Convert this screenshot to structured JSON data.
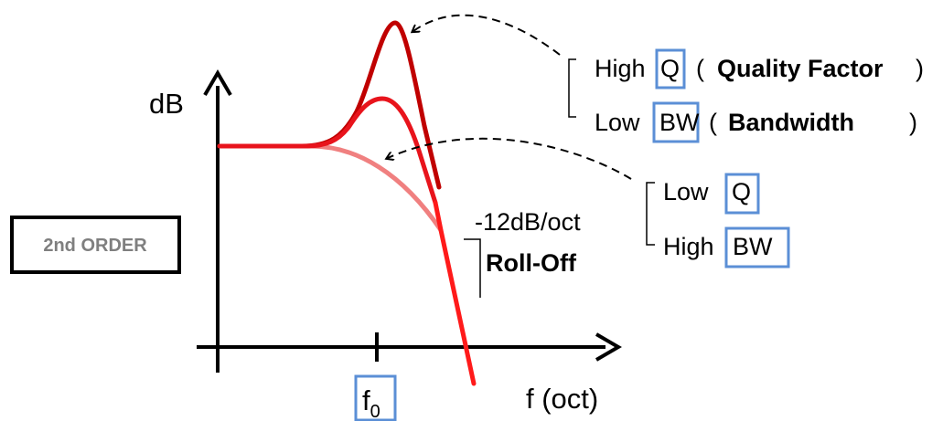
{
  "axes": {
    "y_label": "dB",
    "x_label": "f (oct)",
    "x_marker_main": "f",
    "x_marker_sub": "0"
  },
  "order_box": {
    "label": "2nd ORDER"
  },
  "slope": {
    "value": "-12dB/oct",
    "name": "Roll-Off"
  },
  "high_q_note": {
    "line1_prefix": "High",
    "line1_boxed": "Q",
    "line1_paren_open": "(",
    "line1_bold": "Quality Factor",
    "line1_paren_close": ")",
    "line2_prefix": "Low",
    "line2_boxed": "BW",
    "line2_paren_open": "(",
    "line2_bold": "Bandwidth",
    "line2_paren_close": ")"
  },
  "low_q_note": {
    "line1_prefix": "Low",
    "line1_boxed": "Q",
    "line2_prefix": "High",
    "line2_boxed": "BW"
  },
  "colors": {
    "high_q_curve": "#c00000",
    "mid_q_curve": "#e8141c",
    "low_q_curve": "#f08080",
    "roll_off_line": "#ff1a1a",
    "highlight_box": "#5b8fd6",
    "axis": "#000000"
  }
}
